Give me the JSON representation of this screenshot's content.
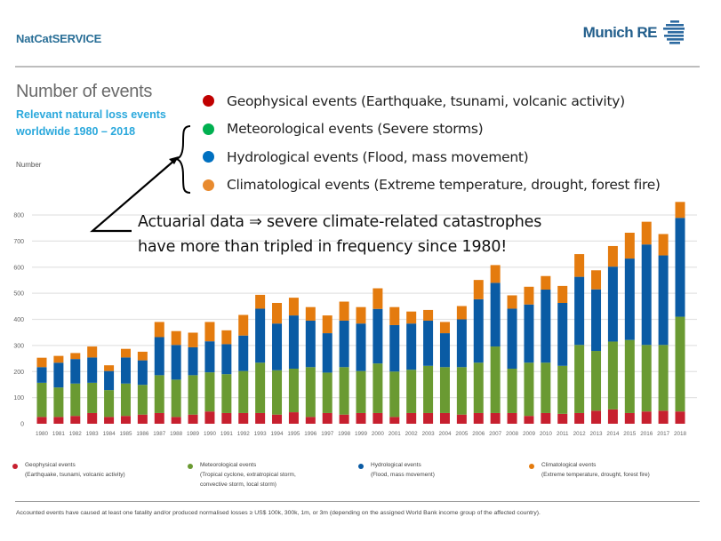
{
  "header": {
    "brand": "NatCatSERVICE",
    "logo_text": "Munich RE"
  },
  "title": "Number of events",
  "subtitle_line1": "Relevant natural loss events",
  "subtitle_line2": "worldwide 1980 – 2018",
  "overlay_legend": [
    {
      "label": "Geophysical events (Earthquake, tsunami, volcanic activity)",
      "color": "#c00000"
    },
    {
      "label": "Meteorological events (Severe storms)",
      "color": "#00b050"
    },
    {
      "label": "Hydrological events (Flood, mass movement)",
      "color": "#0070c0"
    },
    {
      "label": "Climatological events (Extreme temperature, drought, forest fire)",
      "color": "#e88a2e"
    }
  ],
  "annotation": {
    "line1": "Actuarial data ⇒ severe climate-related catastrophes",
    "line2": "have more than tripled in frequency since 1980!"
  },
  "bottom_legend": [
    {
      "name": "Geophysical events",
      "desc": "(Earthquake, tsunami, volcanic activity)",
      "color": "#c7202f"
    },
    {
      "name": "Meteorological events",
      "desc": "(Tropical cyclone, extratropical storm, convective storm, local storm)",
      "color": "#6a9a32"
    },
    {
      "name": "Hydrological events",
      "desc": "(Flood, mass movement)",
      "color": "#0a5ba4"
    },
    {
      "name": "Climatological events",
      "desc": "(Extreme temperature, drought, forest fire)",
      "color": "#e47b0e"
    }
  ],
  "footnote": "Accounted events have caused at least one fatality and/or produced normalised losses ≥ US$ 100k, 300k, 1m, or 3m (depending on the assigned World Bank income group of the affected country).",
  "chart_data": {
    "type": "bar",
    "stacked": true,
    "title": "Number of events",
    "subtitle": "Relevant natural loss events worldwide 1980 – 2018",
    "xlabel": "",
    "ylabel": "Number",
    "ylim": [
      0,
      800
    ],
    "yticks": [
      0,
      100,
      200,
      300,
      400,
      500,
      600,
      700,
      800
    ],
    "grid": true,
    "legend_position": "bottom",
    "categories": [
      "1980",
      "1981",
      "1982",
      "1983",
      "1984",
      "1985",
      "1986",
      "1987",
      "1988",
      "1989",
      "1990",
      "1991",
      "1992",
      "1993",
      "1994",
      "1995",
      "1996",
      "1997",
      "1998",
      "1999",
      "2000",
      "2001",
      "2002",
      "2003",
      "2004",
      "2005",
      "2006",
      "2007",
      "2008",
      "2009",
      "2010",
      "2011",
      "2012",
      "2013",
      "2014",
      "2015",
      "2016",
      "2017",
      "2018"
    ],
    "series": [
      {
        "name": "Geophysical events",
        "color": "#c7202f",
        "values": [
          26,
          26,
          30,
          41,
          26,
          30,
          35,
          41,
          26,
          35,
          47,
          41,
          41,
          41,
          35,
          44,
          26,
          41,
          35,
          41,
          41,
          26,
          41,
          41,
          41,
          35,
          41,
          41,
          41,
          30,
          41,
          38,
          41,
          50,
          55,
          41,
          47,
          50,
          47
        ]
      },
      {
        "name": "Meteorological events",
        "color": "#6a9a32",
        "values": [
          131,
          113,
          124,
          116,
          103,
          124,
          114,
          145,
          143,
          151,
          150,
          149,
          161,
          193,
          170,
          167,
          191,
          155,
          182,
          161,
          190,
          174,
          166,
          181,
          176,
          182,
          193,
          255,
          170,
          204,
          193,
          184,
          261,
          229,
          260,
          280,
          255,
          252,
          363
        ]
      },
      {
        "name": "Hydrological events",
        "color": "#0a5ba4",
        "values": [
          60,
          95,
          94,
          97,
          73,
          100,
          94,
          146,
          133,
          107,
          119,
          115,
          136,
          207,
          179,
          204,
          178,
          151,
          178,
          182,
          209,
          178,
          177,
          173,
          130,
          183,
          243,
          244,
          230,
          223,
          280,
          241,
          261,
          236,
          287,
          312,
          385,
          343,
          379
        ]
      },
      {
        "name": "Climatological events",
        "color": "#e47b0e",
        "values": [
          36,
          26,
          23,
          42,
          22,
          33,
          33,
          58,
          53,
          56,
          74,
          53,
          79,
          53,
          79,
          68,
          52,
          68,
          73,
          63,
          79,
          69,
          46,
          41,
          43,
          51,
          74,
          68,
          51,
          68,
          52,
          65,
          87,
          73,
          79,
          99,
          87,
          82,
          61
        ]
      }
    ],
    "totals": [
      253,
      260,
      271,
      296,
      224,
      287,
      276,
      390,
      355,
      349,
      390,
      358,
      417,
      494,
      463,
      483,
      447,
      415,
      468,
      447,
      519,
      447,
      430,
      436,
      390,
      451,
      551,
      608,
      492,
      525,
      566,
      528,
      650,
      588,
      681,
      732,
      774,
      727,
      850
    ]
  }
}
